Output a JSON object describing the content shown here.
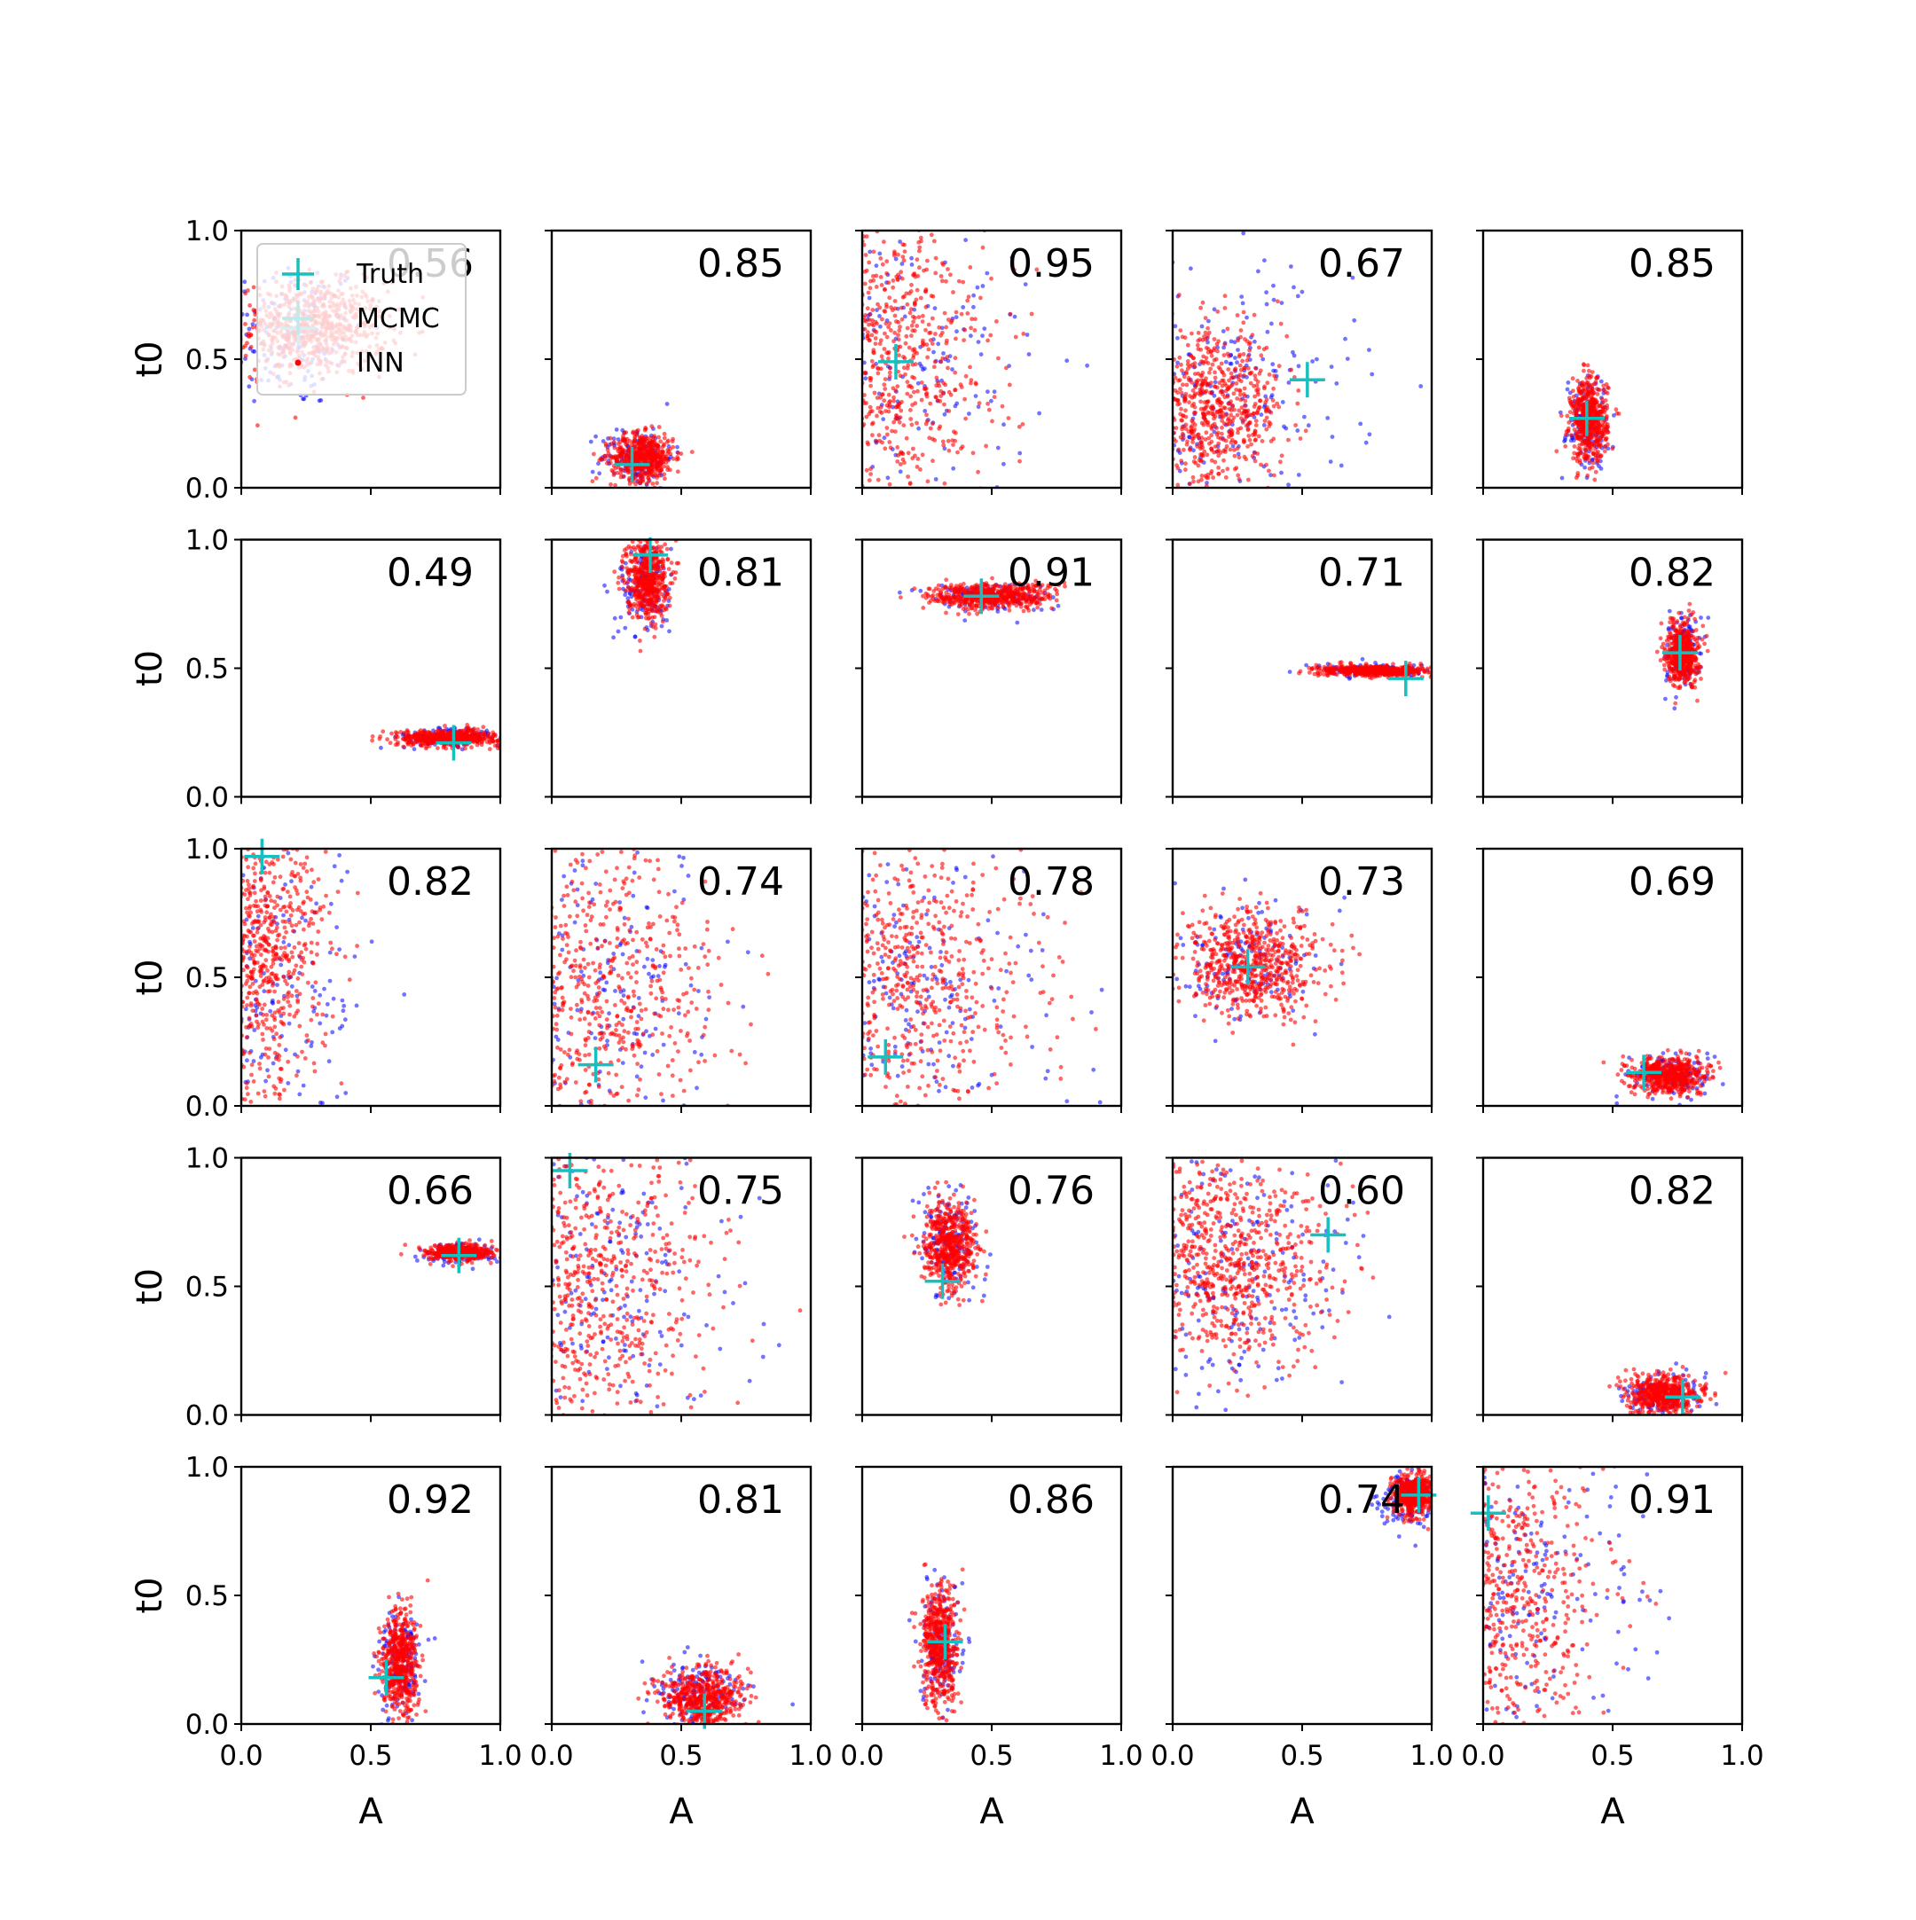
{
  "chart_data": {
    "type": "scatter",
    "layout": {
      "rows": 5,
      "cols": 5,
      "sharex": true,
      "sharey": true
    },
    "xlabel": "A",
    "ylabel": "t0",
    "xlim": [
      0,
      1
    ],
    "ylim": [
      0,
      1
    ],
    "xticks": [
      0,
      0.5,
      1
    ],
    "xtick_labels": [
      "0.0",
      "0.5",
      "1.0"
    ],
    "yticks": [
      0,
      0.5,
      1
    ],
    "ytick_labels": [
      "0.0",
      "0.5",
      "1.0"
    ],
    "legend": {
      "placement": "upper-left of first panel",
      "entries": [
        {
          "label": "Truth",
          "marker": "plus",
          "color": "#17bfbf"
        },
        {
          "label": "MCMC",
          "marker": "plus",
          "color": "#bfeaea"
        },
        {
          "label": "INN",
          "marker": "dot",
          "color": "#ff0000"
        }
      ]
    },
    "colors": {
      "truth": "#17bfbf",
      "mcmc": "#0000ff",
      "inn": "#ff0000"
    },
    "panels": [
      {
        "score": "0.56",
        "truth": [
          0.22,
          0.62
        ],
        "inn": {
          "cx": 0.28,
          "cy": 0.62,
          "sx": 0.14,
          "sy": 0.09,
          "n": 650
        },
        "mcmc": {
          "cx": 0.2,
          "cy": 0.6,
          "sx": 0.14,
          "sy": 0.15,
          "n": 160
        }
      },
      {
        "score": "0.85",
        "truth": [
          0.31,
          0.09
        ],
        "inn": {
          "cx": 0.35,
          "cy": 0.12,
          "sx": 0.06,
          "sy": 0.045,
          "n": 560
        },
        "mcmc": {
          "cx": 0.33,
          "cy": 0.12,
          "sx": 0.07,
          "sy": 0.06,
          "n": 140
        }
      },
      {
        "score": "0.95",
        "truth": [
          0.13,
          0.49
        ],
        "inn": {
          "cx": 0.1,
          "cy": 0.5,
          "sx": 0.2,
          "sy": 0.3,
          "n": 750
        },
        "mcmc": {
          "cx": 0.15,
          "cy": 0.5,
          "sx": 0.25,
          "sy": 0.3,
          "n": 200
        }
      },
      {
        "score": "0.67",
        "truth": [
          0.52,
          0.42
        ],
        "inn": {
          "cx": 0.15,
          "cy": 0.3,
          "sx": 0.14,
          "sy": 0.15,
          "n": 700
        },
        "mcmc": {
          "cx": 0.2,
          "cy": 0.35,
          "sx": 0.25,
          "sy": 0.25,
          "n": 220
        }
      },
      {
        "score": "0.85",
        "truth": [
          0.4,
          0.27
        ],
        "inn": {
          "cx": 0.41,
          "cy": 0.26,
          "sx": 0.035,
          "sy": 0.08,
          "n": 560
        },
        "mcmc": {
          "cx": 0.4,
          "cy": 0.26,
          "sx": 0.04,
          "sy": 0.09,
          "n": 140
        }
      },
      {
        "score": "0.49",
        "truth": [
          0.82,
          0.21
        ],
        "inn": {
          "cx": 0.8,
          "cy": 0.23,
          "sx": 0.1,
          "sy": 0.015,
          "n": 520
        },
        "mcmc": {
          "cx": 0.8,
          "cy": 0.23,
          "sx": 0.1,
          "sy": 0.02,
          "n": 120
        }
      },
      {
        "score": "0.81",
        "truth": [
          0.38,
          0.94
        ],
        "inn": {
          "cx": 0.37,
          "cy": 0.85,
          "sx": 0.04,
          "sy": 0.08,
          "n": 540
        },
        "mcmc": {
          "cx": 0.36,
          "cy": 0.82,
          "sx": 0.05,
          "sy": 0.1,
          "n": 140
        }
      },
      {
        "score": "0.91",
        "truth": [
          0.46,
          0.78
        ],
        "inn": {
          "cx": 0.5,
          "cy": 0.78,
          "sx": 0.12,
          "sy": 0.025,
          "n": 560
        },
        "mcmc": {
          "cx": 0.48,
          "cy": 0.78,
          "sx": 0.12,
          "sy": 0.03,
          "n": 120
        }
      },
      {
        "score": "0.71",
        "truth": [
          0.9,
          0.46
        ],
        "inn": {
          "cx": 0.78,
          "cy": 0.49,
          "sx": 0.11,
          "sy": 0.01,
          "n": 500
        },
        "mcmc": {
          "cx": 0.78,
          "cy": 0.49,
          "sx": 0.11,
          "sy": 0.012,
          "n": 120
        }
      },
      {
        "score": "0.82",
        "truth": [
          0.76,
          0.56
        ],
        "inn": {
          "cx": 0.77,
          "cy": 0.56,
          "sx": 0.03,
          "sy": 0.06,
          "n": 540
        },
        "mcmc": {
          "cx": 0.77,
          "cy": 0.56,
          "sx": 0.035,
          "sy": 0.07,
          "n": 130
        }
      },
      {
        "score": "0.82",
        "truth": [
          0.08,
          0.97
        ],
        "inn": {
          "cx": 0.08,
          "cy": 0.6,
          "sx": 0.12,
          "sy": 0.3,
          "n": 750
        },
        "mcmc": {
          "cx": 0.1,
          "cy": 0.5,
          "sx": 0.2,
          "sy": 0.3,
          "n": 220
        }
      },
      {
        "score": "0.74",
        "truth": [
          0.17,
          0.16
        ],
        "inn": {
          "cx": 0.12,
          "cy": 0.45,
          "sx": 0.25,
          "sy": 0.3,
          "n": 750
        },
        "mcmc": {
          "cx": 0.15,
          "cy": 0.4,
          "sx": 0.3,
          "sy": 0.3,
          "n": 240
        }
      },
      {
        "score": "0.78",
        "truth": [
          0.09,
          0.19
        ],
        "inn": {
          "cx": 0.15,
          "cy": 0.5,
          "sx": 0.25,
          "sy": 0.3,
          "n": 750
        },
        "mcmc": {
          "cx": 0.15,
          "cy": 0.45,
          "sx": 0.3,
          "sy": 0.3,
          "n": 240
        }
      },
      {
        "score": "0.73",
        "truth": [
          0.29,
          0.54
        ],
        "inn": {
          "cx": 0.3,
          "cy": 0.55,
          "sx": 0.14,
          "sy": 0.1,
          "n": 650
        },
        "mcmc": {
          "cx": 0.3,
          "cy": 0.55,
          "sx": 0.15,
          "sy": 0.11,
          "n": 130
        }
      },
      {
        "score": "0.69",
        "truth": [
          0.62,
          0.13
        ],
        "inn": {
          "cx": 0.72,
          "cy": 0.12,
          "sx": 0.07,
          "sy": 0.035,
          "n": 540
        },
        "mcmc": {
          "cx": 0.72,
          "cy": 0.12,
          "sx": 0.08,
          "sy": 0.04,
          "n": 130
        }
      },
      {
        "score": "0.66",
        "truth": [
          0.84,
          0.62
        ],
        "inn": {
          "cx": 0.84,
          "cy": 0.63,
          "sx": 0.06,
          "sy": 0.015,
          "n": 520
        },
        "mcmc": {
          "cx": 0.84,
          "cy": 0.63,
          "sx": 0.07,
          "sy": 0.02,
          "n": 120
        }
      },
      {
        "score": "0.75",
        "truth": [
          0.07,
          0.95
        ],
        "inn": {
          "cx": 0.12,
          "cy": 0.5,
          "sx": 0.25,
          "sy": 0.3,
          "n": 750
        },
        "mcmc": {
          "cx": 0.15,
          "cy": 0.45,
          "sx": 0.3,
          "sy": 0.3,
          "n": 240
        }
      },
      {
        "score": "0.76",
        "truth": [
          0.31,
          0.52
        ],
        "inn": {
          "cx": 0.34,
          "cy": 0.66,
          "sx": 0.05,
          "sy": 0.08,
          "n": 560
        },
        "mcmc": {
          "cx": 0.34,
          "cy": 0.66,
          "sx": 0.06,
          "sy": 0.1,
          "n": 140
        }
      },
      {
        "score": "0.60",
        "truth": [
          0.6,
          0.7
        ],
        "inn": {
          "cx": 0.2,
          "cy": 0.6,
          "sx": 0.2,
          "sy": 0.2,
          "n": 750
        },
        "mcmc": {
          "cx": 0.2,
          "cy": 0.55,
          "sx": 0.25,
          "sy": 0.3,
          "n": 240
        }
      },
      {
        "score": "0.82",
        "truth": [
          0.77,
          0.07
        ],
        "inn": {
          "cx": 0.7,
          "cy": 0.08,
          "sx": 0.07,
          "sy": 0.035,
          "n": 540
        },
        "mcmc": {
          "cx": 0.7,
          "cy": 0.08,
          "sx": 0.08,
          "sy": 0.04,
          "n": 130
        }
      },
      {
        "score": "0.92",
        "truth": [
          0.56,
          0.18
        ],
        "inn": {
          "cx": 0.61,
          "cy": 0.24,
          "sx": 0.035,
          "sy": 0.1,
          "n": 560
        },
        "mcmc": {
          "cx": 0.61,
          "cy": 0.24,
          "sx": 0.04,
          "sy": 0.11,
          "n": 140
        }
      },
      {
        "score": "0.81",
        "truth": [
          0.59,
          0.05
        ],
        "inn": {
          "cx": 0.58,
          "cy": 0.1,
          "sx": 0.08,
          "sy": 0.06,
          "n": 560
        },
        "mcmc": {
          "cx": 0.55,
          "cy": 0.12,
          "sx": 0.09,
          "sy": 0.07,
          "n": 140
        }
      },
      {
        "score": "0.86",
        "truth": [
          0.32,
          0.32
        ],
        "inn": {
          "cx": 0.3,
          "cy": 0.3,
          "sx": 0.035,
          "sy": 0.12,
          "n": 560
        },
        "mcmc": {
          "cx": 0.3,
          "cy": 0.3,
          "sx": 0.04,
          "sy": 0.13,
          "n": 140
        }
      },
      {
        "score": "0.74",
        "truth": [
          0.95,
          0.89
        ],
        "inn": {
          "cx": 0.93,
          "cy": 0.89,
          "sx": 0.04,
          "sy": 0.04,
          "n": 520
        },
        "mcmc": {
          "cx": 0.9,
          "cy": 0.87,
          "sx": 0.05,
          "sy": 0.05,
          "n": 140
        }
      },
      {
        "score": "0.91",
        "truth": [
          0.02,
          0.82
        ],
        "inn": {
          "cx": 0.05,
          "cy": 0.5,
          "sx": 0.2,
          "sy": 0.3,
          "n": 750
        },
        "mcmc": {
          "cx": 0.1,
          "cy": 0.5,
          "sx": 0.25,
          "sy": 0.3,
          "n": 220
        }
      }
    ]
  }
}
